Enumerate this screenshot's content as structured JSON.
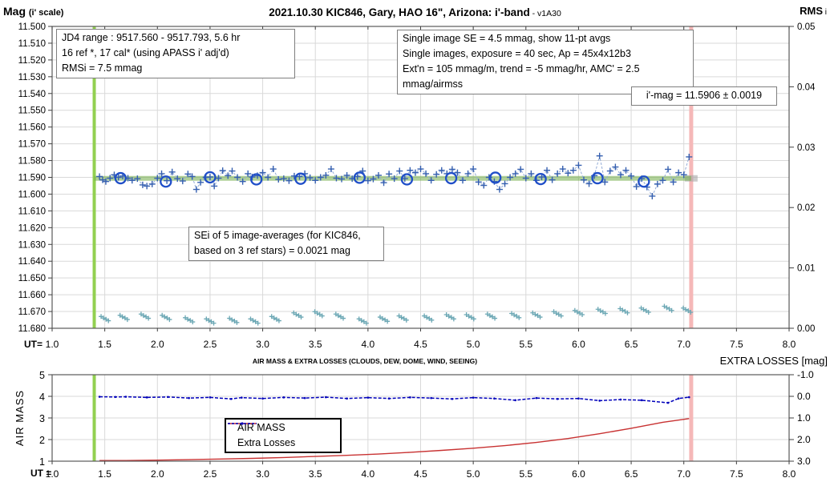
{
  "header": {
    "mag_label": "Mag",
    "mag_scale": "(i' scale)",
    "title": "2021.10.30 KIC846, Gary, HAO 16\", Arizona: i'-band",
    "title_version": " - v1A30",
    "rms_label": "RMS",
    "rms_sub": " i"
  },
  "boxes": {
    "jd_range": {
      "lines": [
        "JD4 range : 9517.560 - 9517.793, 5.6  hr",
        "16 ref *, 17 cal* (using APASS i' adj'd)",
        "RMSi = 7.5 mmag"
      ]
    },
    "single_image": {
      "lines": [
        "Single image SE = 4.5 mmag, show 11-pt avgs",
        "Single images, exposure = 40 sec, Ap = 45x4x12b3",
        "Ext'n = 105 mmag/m, trend = -5 mmag/hr, AMC' = 2.5 mmag/airmss"
      ]
    },
    "imag": "i'-mag = 11.5906 ± 0.0019",
    "sei": {
      "lines": [
        "SEi of 5 image-averages (for KIC846,",
        "based on 3 ref stars) = 0.0021 mag"
      ]
    }
  },
  "axes": {
    "main": {
      "ut_prefix": "UT=",
      "x_ticks": [
        "1.0",
        "1.5",
        "2.0",
        "2.5",
        "3.0",
        "3.5",
        "4.0",
        "4.5",
        "5.0",
        "5.5",
        "6.0",
        "6.5",
        "7.0",
        "7.5",
        "8.0"
      ],
      "y_left_ticks": [
        "11.500",
        "11.510",
        "11.520",
        "11.530",
        "11.540",
        "11.550",
        "11.560",
        "11.570",
        "11.580",
        "11.590",
        "11.600",
        "11.610",
        "11.620",
        "11.630",
        "11.640",
        "11.650",
        "11.660",
        "11.670",
        "11.680"
      ],
      "y_right_ticks": [
        "0.05",
        "0.04",
        "0.03",
        "0.02",
        "0.01",
        "0.00"
      ]
    },
    "lower": {
      "ut_prefix": "UT =",
      "x_ticks": [
        "1.0",
        "1.5",
        "2.0",
        "2.5",
        "3.0",
        "3.5",
        "4.0",
        "4.5",
        "5.0",
        "5.5",
        "6.0",
        "6.5",
        "7.0",
        "7.5",
        "8.0"
      ],
      "y_left_ticks": [
        "5",
        "4",
        "3",
        "2",
        "1"
      ],
      "y_right_ticks": [
        "-1.0",
        "0.0",
        "1.0",
        "2.0",
        "3.0"
      ],
      "title": "AIR MASS & EXTRA LOSSES (CLOUDS, DEW, DOME, WIND, SEEING)",
      "left_axis_label": "AIR MASS",
      "right_axis_label": "EXTRA LOSSES [mag]"
    }
  },
  "legend": {
    "air_mass": "AIR MASS",
    "extra_losses": "Extra Losses"
  },
  "colors": {
    "grid": "#d9d9d9",
    "frame": "#595959",
    "session_start_green": "#92D050",
    "session_end_pink": "#F5B8B8",
    "mean_line_green": "#70AD47",
    "plus_blue": "#3660B0",
    "connector_blue": "#93ABD6",
    "circle_blue": "#1F4EC8",
    "rms_teal": "#6BA7B4",
    "airmass_red": "#C83232",
    "extra_losses_blue": "#0000BB"
  },
  "chart_data": [
    {
      "type": "scatter",
      "title": "2021.10.30 KIC846, Gary, HAO 16\", Arizona: i'-band - v1A30",
      "xlabel": "UT",
      "x_range": [
        1.0,
        8.0
      ],
      "y_left": {
        "label": "Mag (i' scale)",
        "range": [
          11.5,
          11.68
        ],
        "direction": "inverted-down"
      },
      "y_right": {
        "label": "RMS i",
        "range": [
          0.0,
          0.05
        ]
      },
      "grid": true,
      "mean_mag": 11.5906,
      "mean_mag_uncertainty": 0.0019,
      "session_start_ut": 1.4,
      "session_end_ut": 7.07,
      "series": [
        {
          "name": "11-pt averages",
          "marker": "plus",
          "line": "dashed",
          "axis": "left",
          "points": [
            [
              1.45,
              11.5895
            ],
            [
              1.48,
              11.5915
            ],
            [
              1.51,
              11.5925
            ],
            [
              1.55,
              11.5905
            ],
            [
              1.59,
              11.5885
            ],
            [
              1.63,
              11.59
            ],
            [
              1.67,
              11.5892
            ],
            [
              1.72,
              11.5905
            ],
            [
              1.76,
              11.5918
            ],
            [
              1.81,
              11.5908
            ],
            [
              1.86,
              11.5945
            ],
            [
              1.9,
              11.5952
            ],
            [
              1.95,
              11.594
            ],
            [
              2.0,
              11.5905
            ],
            [
              2.04,
              11.5878
            ],
            [
              2.09,
              11.592
            ],
            [
              2.14,
              11.5868
            ],
            [
              2.19,
              11.5908
            ],
            [
              2.24,
              11.5922
            ],
            [
              2.29,
              11.588
            ],
            [
              2.33,
              11.5895
            ],
            [
              2.37,
              11.5972
            ],
            [
              2.41,
              11.593
            ],
            [
              2.46,
              11.59
            ],
            [
              2.5,
              11.5898
            ],
            [
              2.54,
              11.5952
            ],
            [
              2.58,
              11.5905
            ],
            [
              2.62,
              11.586
            ],
            [
              2.67,
              11.589
            ],
            [
              2.71,
              11.5862
            ],
            [
              2.76,
              11.59
            ],
            [
              2.81,
              11.5925
            ],
            [
              2.86,
              11.5878
            ],
            [
              2.9,
              11.5898
            ],
            [
              2.95,
              11.589
            ],
            [
              3.0,
              11.5872
            ],
            [
              3.05,
              11.59
            ],
            [
              3.1,
              11.585
            ],
            [
              3.15,
              11.5912
            ],
            [
              3.2,
              11.5908
            ],
            [
              3.25,
              11.592
            ],
            [
              3.3,
              11.5892
            ],
            [
              3.35,
              11.5895
            ],
            [
              3.4,
              11.5878
            ],
            [
              3.45,
              11.5902
            ],
            [
              3.5,
              11.5918
            ],
            [
              3.55,
              11.59
            ],
            [
              3.6,
              11.5888
            ],
            [
              3.65,
              11.585
            ],
            [
              3.7,
              11.5905
            ],
            [
              3.75,
              11.591
            ],
            [
              3.8,
              11.5888
            ],
            [
              3.85,
              11.5908
            ],
            [
              3.9,
              11.5895
            ],
            [
              3.95,
              11.5862
            ],
            [
              4.0,
              11.592
            ],
            [
              4.05,
              11.591
            ],
            [
              4.1,
              11.5888
            ],
            [
              4.15,
              11.5932
            ],
            [
              4.2,
              11.588
            ],
            [
              4.25,
              11.5908
            ],
            [
              4.3,
              11.5862
            ],
            [
              4.35,
              11.5908
            ],
            [
              4.4,
              11.5858
            ],
            [
              4.45,
              11.5872
            ],
            [
              4.5,
              11.585
            ],
            [
              4.55,
              11.5878
            ],
            [
              4.6,
              11.5918
            ],
            [
              4.65,
              11.5882
            ],
            [
              4.7,
              11.5858
            ],
            [
              4.75,
              11.5878
            ],
            [
              4.8,
              11.5852
            ],
            [
              4.85,
              11.5872
            ],
            [
              4.9,
              11.5918
            ],
            [
              4.95,
              11.5878
            ],
            [
              5.0,
              11.585
            ],
            [
              5.05,
              11.5928
            ],
            [
              5.1,
              11.5948
            ],
            [
              5.15,
              11.59
            ],
            [
              5.2,
              11.5925
            ],
            [
              5.25,
              11.5972
            ],
            [
              5.3,
              11.5938
            ],
            [
              5.35,
              11.59
            ],
            [
              5.4,
              11.5878
            ],
            [
              5.45,
              11.5852
            ],
            [
              5.5,
              11.5905
            ],
            [
              5.55,
              11.5878
            ],
            [
              5.6,
              11.5918
            ],
            [
              5.65,
              11.5898
            ],
            [
              5.7,
              11.5858
            ],
            [
              5.75,
              11.5915
            ],
            [
              5.8,
              11.5878
            ],
            [
              5.85,
              11.585
            ],
            [
              5.9,
              11.5875
            ],
            [
              5.95,
              11.5858
            ],
            [
              6.0,
              11.5828
            ],
            [
              6.05,
              11.5915
            ],
            [
              6.1,
              11.5938
            ],
            [
              6.15,
              11.589
            ],
            [
              6.2,
              11.5772
            ],
            [
              6.25,
              11.5928
            ],
            [
              6.3,
              11.5862
            ],
            [
              6.35,
              11.5838
            ],
            [
              6.4,
              11.5885
            ],
            [
              6.45,
              11.5858
            ],
            [
              6.5,
              11.5892
            ],
            [
              6.55,
              11.5955
            ],
            [
              6.6,
              11.5908
            ],
            [
              6.65,
              11.5958
            ],
            [
              6.7,
              11.6012
            ],
            [
              6.75,
              11.594
            ],
            [
              6.8,
              11.5918
            ],
            [
              6.85,
              11.5852
            ],
            [
              6.9,
              11.5928
            ],
            [
              6.95,
              11.5872
            ],
            [
              7.0,
              11.5885
            ],
            [
              7.05,
              11.5778
            ]
          ]
        },
        {
          "name": "5-image averages",
          "marker": "circle",
          "axis": "left",
          "points": [
            [
              1.65,
              11.5905
            ],
            [
              2.08,
              11.5925
            ],
            [
              2.5,
              11.59
            ],
            [
              2.94,
              11.5912
            ],
            [
              3.36,
              11.5908
            ],
            [
              3.92,
              11.5902
            ],
            [
              4.37,
              11.5912
            ],
            [
              4.79,
              11.5905
            ],
            [
              5.21,
              11.5902
            ],
            [
              5.64,
              11.591
            ],
            [
              6.18,
              11.5905
            ],
            [
              6.62,
              11.5925
            ]
          ]
        },
        {
          "name": "mean i'-mag line",
          "type": "hline",
          "y": 11.5906,
          "x_start": 1.4,
          "x_end": 7.07
        },
        {
          "name": "RMS of image-averages",
          "marker": "plus-cluster",
          "axis": "right",
          "points": [
            [
              1.5,
              0.0016
            ],
            [
              1.68,
              0.0018
            ],
            [
              1.88,
              0.002
            ],
            [
              2.08,
              0.0018
            ],
            [
              2.3,
              0.0014
            ],
            [
              2.5,
              0.0012
            ],
            [
              2.72,
              0.0013
            ],
            [
              2.92,
              0.0012
            ],
            [
              3.12,
              0.0016
            ],
            [
              3.33,
              0.0022
            ],
            [
              3.53,
              0.0024
            ],
            [
              3.73,
              0.002
            ],
            [
              3.95,
              0.0012
            ],
            [
              4.15,
              0.0015
            ],
            [
              4.33,
              0.0017
            ],
            [
              4.57,
              0.0017
            ],
            [
              4.78,
              0.0019
            ],
            [
              4.97,
              0.0019
            ],
            [
              5.17,
              0.002
            ],
            [
              5.4,
              0.0021
            ],
            [
              5.6,
              0.0022
            ],
            [
              5.8,
              0.0024
            ],
            [
              6.0,
              0.0026
            ],
            [
              6.22,
              0.0028
            ],
            [
              6.43,
              0.0029
            ],
            [
              6.63,
              0.003
            ],
            [
              6.85,
              0.0033
            ],
            [
              7.03,
              0.003
            ]
          ]
        }
      ]
    },
    {
      "type": "line",
      "title": "AIR MASS & EXTRA LOSSES (CLOUDS, DEW, DOME, WIND, SEEING)",
      "xlabel": "UT",
      "x_range": [
        1.0,
        8.0
      ],
      "y_left": {
        "label": "AIR MASS",
        "range": [
          1,
          5
        ]
      },
      "y_right": {
        "label": "EXTRA LOSSES [mag]",
        "range": [
          3.0,
          -1.0
        ]
      },
      "grid": true,
      "session_start_ut": 1.4,
      "session_end_ut": 7.07,
      "series": [
        {
          "name": "AIR MASS",
          "axis": "left",
          "line": "solid",
          "points": [
            [
              1.45,
              1.03
            ],
            [
              1.7,
              1.03
            ],
            [
              2.0,
              1.05
            ],
            [
              2.3,
              1.07
            ],
            [
              2.6,
              1.1
            ],
            [
              2.9,
              1.13
            ],
            [
              3.2,
              1.17
            ],
            [
              3.5,
              1.22
            ],
            [
              3.8,
              1.27
            ],
            [
              4.1,
              1.33
            ],
            [
              4.4,
              1.41
            ],
            [
              4.7,
              1.5
            ],
            [
              5.0,
              1.6
            ],
            [
              5.3,
              1.72
            ],
            [
              5.6,
              1.87
            ],
            [
              5.9,
              2.05
            ],
            [
              6.2,
              2.27
            ],
            [
              6.5,
              2.52
            ],
            [
              6.8,
              2.8
            ],
            [
              7.05,
              2.97
            ]
          ]
        },
        {
          "name": "Extra Losses",
          "axis": "right",
          "line": "dashed",
          "points": [
            [
              1.45,
              0.02
            ],
            [
              1.6,
              0.03
            ],
            [
              1.7,
              0.02
            ],
            [
              1.9,
              0.05
            ],
            [
              2.1,
              0.03
            ],
            [
              2.3,
              0.08
            ],
            [
              2.5,
              0.05
            ],
            [
              2.7,
              0.12
            ],
            [
              2.8,
              0.06
            ],
            [
              3.0,
              0.1
            ],
            [
              3.2,
              0.05
            ],
            [
              3.4,
              0.08
            ],
            [
              3.6,
              0.04
            ],
            [
              3.8,
              0.1
            ],
            [
              4.0,
              0.06
            ],
            [
              4.2,
              0.1
            ],
            [
              4.4,
              0.05
            ],
            [
              4.6,
              0.08
            ],
            [
              4.8,
              0.12
            ],
            [
              5.0,
              0.06
            ],
            [
              5.2,
              0.1
            ],
            [
              5.4,
              0.18
            ],
            [
              5.6,
              0.08
            ],
            [
              5.8,
              0.12
            ],
            [
              6.0,
              0.1
            ],
            [
              6.2,
              0.2
            ],
            [
              6.4,
              0.15
            ],
            [
              6.6,
              0.18
            ],
            [
              6.85,
              0.3
            ],
            [
              6.95,
              0.1
            ],
            [
              7.05,
              0.04
            ]
          ]
        }
      ]
    }
  ]
}
